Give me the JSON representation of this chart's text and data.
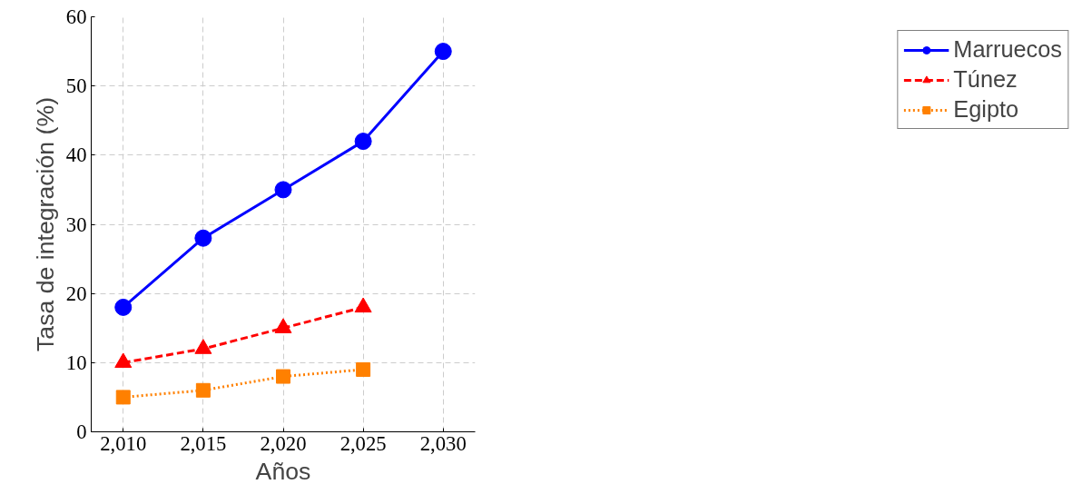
{
  "chart_data": {
    "type": "line",
    "xlabel": "Años",
    "ylabel": "Tasa de integración (%)",
    "xlim": [
      2008,
      2032
    ],
    "ylim": [
      0,
      60
    ],
    "xticks": [
      {
        "value": 2010,
        "label": "2,010"
      },
      {
        "value": 2015,
        "label": "2,015"
      },
      {
        "value": 2020,
        "label": "2,020"
      },
      {
        "value": 2025,
        "label": "2,025"
      },
      {
        "value": 2030,
        "label": "2,030"
      }
    ],
    "yticks": [
      0,
      10,
      20,
      30,
      40,
      50,
      60
    ],
    "grid": true,
    "legend": "right",
    "series": [
      {
        "name": "Marruecos",
        "color": "#0000ff",
        "marker": "circle",
        "line_style": "solid",
        "x": [
          2010,
          2015,
          2020,
          2025,
          2030
        ],
        "values": [
          18,
          28,
          35,
          42,
          55
        ]
      },
      {
        "name": "Túnez",
        "color": "#ff0000",
        "marker": "triangle",
        "line_style": "dashed",
        "x": [
          2010,
          2015,
          2020,
          2025
        ],
        "values": [
          10,
          12,
          15,
          18
        ]
      },
      {
        "name": "Egipto",
        "color": "#ff8000",
        "marker": "square",
        "line_style": "dotted",
        "x": [
          2010,
          2015,
          2020,
          2025
        ],
        "values": [
          5,
          6,
          8,
          9
        ]
      }
    ]
  }
}
